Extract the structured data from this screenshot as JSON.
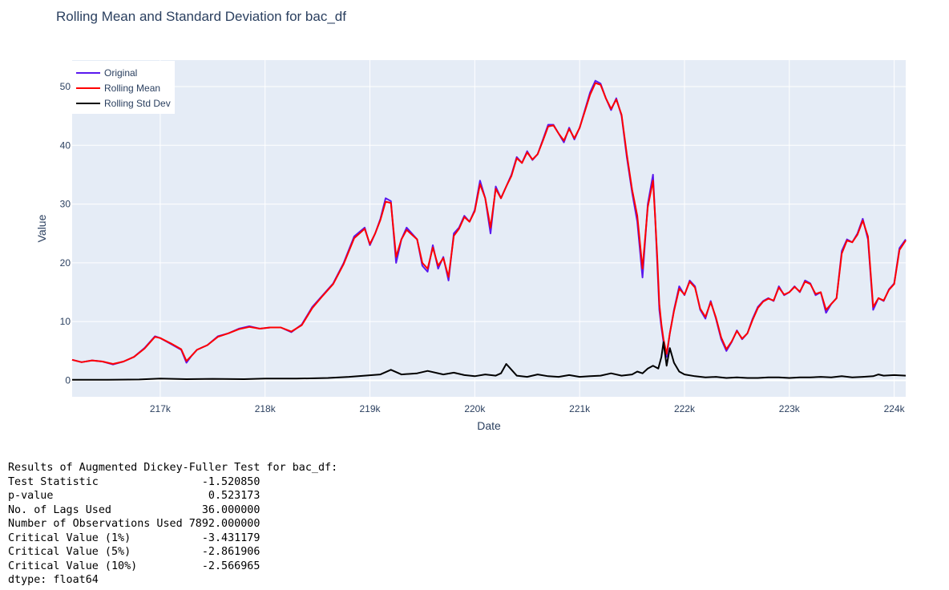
{
  "colors": {
    "plot_bg": "#e5ecf6",
    "grid": "#ffffff",
    "original": "#5a18ee",
    "rolling_mean": "#ff0000",
    "rolling_std": "#000000"
  },
  "chart_data": {
    "type": "line",
    "title": "Rolling Mean and Standard Deviation for bac_df",
    "xlabel": "Date",
    "ylabel": "Value",
    "xlim": [
      216160,
      224110
    ],
    "ylim": [
      -2.8,
      54.5
    ],
    "x_ticks": [
      217000,
      218000,
      219000,
      220000,
      221000,
      222000,
      223000,
      224000
    ],
    "x_tick_labels": [
      "217k",
      "218k",
      "219k",
      "220k",
      "221k",
      "222k",
      "223k",
      "224k"
    ],
    "y_ticks": [
      0,
      10,
      20,
      30,
      40,
      50
    ],
    "y_tick_labels": [
      "0",
      "10",
      "20",
      "30",
      "40",
      "50"
    ],
    "grid": true,
    "legend": "top-left",
    "series": [
      {
        "name": "Original",
        "x": [
          216160,
          216250,
          216350,
          216450,
          216550,
          216650,
          216750,
          216850,
          216950,
          217000,
          217100,
          217200,
          217250,
          217300,
          217350,
          217450,
          217550,
          217650,
          217750,
          217850,
          217950,
          218050,
          218150,
          218250,
          218350,
          218450,
          218550,
          218650,
          218750,
          218850,
          218950,
          219000,
          219050,
          219100,
          219150,
          219200,
          219250,
          219300,
          219350,
          219450,
          219500,
          219550,
          219600,
          219650,
          219700,
          219750,
          219800,
          219850,
          219900,
          219950,
          220000,
          220050,
          220100,
          220150,
          220200,
          220250,
          220300,
          220350,
          220400,
          220450,
          220500,
          220550,
          220600,
          220650,
          220700,
          220750,
          220800,
          220850,
          220900,
          220950,
          221000,
          221050,
          221100,
          221150,
          221200,
          221250,
          221300,
          221350,
          221400,
          221450,
          221500,
          221550,
          221600,
          221650,
          221700,
          221720,
          221740,
          221760,
          221780,
          221800,
          221830,
          221860,
          221900,
          221950,
          222000,
          222050,
          222100,
          222150,
          222200,
          222250,
          222300,
          222350,
          222400,
          222450,
          222500,
          222550,
          222600,
          222650,
          222700,
          222750,
          222800,
          222850,
          222900,
          222950,
          223000,
          223050,
          223100,
          223150,
          223200,
          223250,
          223300,
          223350,
          223400,
          223450,
          223500,
          223550,
          223600,
          223650,
          223700,
          223750,
          223800,
          223850,
          223900,
          223950,
          224000,
          224050,
          224110
        ],
        "values": [
          3.5,
          3.1,
          3.4,
          3.2,
          2.7,
          3.2,
          4.0,
          5.5,
          7.5,
          7.2,
          6.2,
          5.2,
          3.0,
          4.2,
          5.2,
          6.0,
          7.5,
          8.0,
          8.8,
          9.2,
          8.8,
          9.0,
          9.0,
          8.2,
          9.5,
          12.5,
          14.5,
          16.5,
          20.0,
          24.5,
          26.0,
          23.0,
          25.0,
          27.5,
          31.0,
          30.5,
          20.0,
          24.0,
          26.0,
          24.0,
          19.5,
          18.5,
          23.0,
          19.0,
          21.0,
          17.0,
          25.0,
          26.0,
          28.0,
          27.0,
          29.0,
          34.0,
          31.0,
          25.0,
          33.0,
          31.0,
          33.0,
          35.0,
          38.0,
          37.0,
          39.0,
          37.5,
          38.5,
          41.0,
          43.5,
          43.5,
          42.0,
          40.5,
          43.0,
          41.0,
          43.0,
          46.0,
          49.0,
          51.0,
          50.5,
          48.0,
          46.0,
          48.0,
          45.0,
          38.0,
          32.0,
          27.0,
          17.5,
          30.0,
          35.0,
          28.0,
          20.0,
          12.0,
          9.0,
          6.5,
          4.0,
          8.0,
          12.0,
          16.0,
          14.5,
          17.0,
          16.0,
          12.0,
          10.5,
          13.5,
          10.5,
          7.0,
          5.0,
          6.5,
          8.5,
          7.0,
          8.0,
          10.5,
          12.5,
          13.5,
          14.0,
          13.5,
          16.0,
          14.5,
          15.0,
          16.0,
          15.0,
          17.0,
          16.5,
          14.5,
          15.0,
          11.5,
          13.0,
          14.0,
          22.0,
          24.0,
          23.5,
          25.0,
          27.5,
          24.0,
          12.0,
          14.0,
          13.5,
          15.5,
          16.5,
          22.5,
          24.0
        ]
      },
      {
        "name": "Rolling Mean",
        "x": [
          216160,
          216250,
          216350,
          216450,
          216550,
          216650,
          216750,
          216850,
          216950,
          217000,
          217100,
          217200,
          217250,
          217300,
          217350,
          217450,
          217550,
          217650,
          217750,
          217850,
          217950,
          218050,
          218150,
          218250,
          218350,
          218450,
          218550,
          218650,
          218750,
          218850,
          218950,
          219000,
          219050,
          219100,
          219150,
          219200,
          219250,
          219300,
          219350,
          219450,
          219500,
          219550,
          219600,
          219650,
          219700,
          219750,
          219800,
          219850,
          219900,
          219950,
          220000,
          220050,
          220100,
          220150,
          220200,
          220250,
          220300,
          220350,
          220400,
          220450,
          220500,
          220550,
          220600,
          220650,
          220700,
          220750,
          220800,
          220850,
          220900,
          220950,
          221000,
          221050,
          221100,
          221150,
          221200,
          221250,
          221300,
          221350,
          221400,
          221450,
          221500,
          221550,
          221600,
          221650,
          221700,
          221720,
          221740,
          221760,
          221780,
          221800,
          221830,
          221860,
          221900,
          221950,
          222000,
          222050,
          222100,
          222150,
          222200,
          222250,
          222300,
          222350,
          222400,
          222450,
          222500,
          222550,
          222600,
          222650,
          222700,
          222750,
          222800,
          222850,
          222900,
          222950,
          223000,
          223050,
          223100,
          223150,
          223200,
          223250,
          223300,
          223350,
          223400,
          223450,
          223500,
          223550,
          223600,
          223650,
          223700,
          223750,
          223800,
          223850,
          223900,
          223950,
          224000,
          224050,
          224110
        ],
        "values": [
          3.5,
          3.1,
          3.4,
          3.2,
          2.8,
          3.2,
          4.0,
          5.4,
          7.4,
          7.2,
          6.3,
          5.3,
          3.3,
          4.2,
          5.2,
          6.0,
          7.4,
          8.0,
          8.7,
          9.1,
          8.8,
          9.0,
          9.0,
          8.3,
          9.4,
          12.3,
          14.4,
          16.4,
          19.8,
          24.2,
          25.8,
          23.2,
          25.0,
          27.3,
          30.4,
          30.2,
          21.0,
          24.0,
          25.6,
          24.0,
          20.0,
          19.0,
          22.6,
          19.5,
          20.8,
          17.6,
          24.6,
          25.8,
          27.8,
          27.0,
          28.8,
          33.4,
          31.0,
          26.0,
          32.6,
          31.0,
          33.0,
          34.8,
          37.8,
          37.0,
          38.8,
          37.6,
          38.5,
          40.8,
          43.2,
          43.4,
          42.0,
          40.8,
          42.8,
          41.2,
          43.0,
          45.8,
          48.6,
          50.6,
          50.3,
          48.0,
          46.2,
          47.8,
          45.2,
          38.5,
          32.5,
          28.0,
          19.0,
          29.5,
          34.0,
          28.0,
          21.0,
          13.0,
          9.5,
          7.0,
          4.5,
          8.0,
          11.8,
          15.6,
          14.6,
          16.8,
          15.8,
          12.2,
          10.8,
          13.3,
          10.7,
          7.3,
          5.3,
          6.6,
          8.4,
          7.1,
          8.0,
          10.3,
          12.3,
          13.4,
          13.9,
          13.6,
          15.8,
          14.6,
          15.0,
          15.9,
          15.1,
          16.8,
          16.4,
          14.7,
          15.0,
          12.0,
          13.0,
          14.0,
          21.6,
          23.8,
          23.5,
          24.8,
          27.2,
          24.5,
          12.5,
          14.0,
          13.6,
          15.4,
          16.4,
          22.2,
          23.8
        ]
      },
      {
        "name": "Rolling Std Dev",
        "x": [
          216160,
          216500,
          216800,
          217000,
          217250,
          217500,
          217800,
          218000,
          218300,
          218600,
          218800,
          218950,
          219100,
          219200,
          219300,
          219450,
          219550,
          219700,
          219800,
          219900,
          220000,
          220100,
          220200,
          220250,
          220300,
          220400,
          220500,
          220600,
          220700,
          220800,
          220900,
          221000,
          221100,
          221200,
          221300,
          221400,
          221500,
          221550,
          221600,
          221650,
          221700,
          221750,
          221780,
          221800,
          221830,
          221860,
          221900,
          221950,
          222000,
          222100,
          222200,
          222300,
          222400,
          222500,
          222600,
          222700,
          222800,
          222900,
          223000,
          223100,
          223200,
          223300,
          223400,
          223500,
          223600,
          223700,
          223800,
          223850,
          223900,
          224000,
          224110
        ],
        "values": [
          0.1,
          0.1,
          0.15,
          0.3,
          0.2,
          0.25,
          0.2,
          0.3,
          0.3,
          0.4,
          0.6,
          0.8,
          1.0,
          1.8,
          1.0,
          1.2,
          1.6,
          1.0,
          1.3,
          0.9,
          0.7,
          1.0,
          0.8,
          1.2,
          2.8,
          0.8,
          0.6,
          1.0,
          0.7,
          0.6,
          0.9,
          0.6,
          0.7,
          0.8,
          1.2,
          0.8,
          1.0,
          1.5,
          1.2,
          2.0,
          2.5,
          2.0,
          4.0,
          6.5,
          2.5,
          5.5,
          3.0,
          1.5,
          1.0,
          0.7,
          0.5,
          0.6,
          0.4,
          0.5,
          0.4,
          0.4,
          0.5,
          0.5,
          0.4,
          0.5,
          0.5,
          0.6,
          0.5,
          0.7,
          0.5,
          0.6,
          0.7,
          1.0,
          0.8,
          0.9,
          0.8
        ]
      }
    ]
  },
  "adf": {
    "heading": "Results of Augmented Dickey-Fuller Test for bac_df:",
    "rows": [
      {
        "label": "Test Statistic",
        "value": "-1.520850"
      },
      {
        "label": "p-value",
        "value": "0.523173"
      },
      {
        "label": "No. of Lags Used",
        "value": "36.000000"
      },
      {
        "label": "Number of Observations Used",
        "value": "7892.000000"
      },
      {
        "label": "Critical Value (1%)",
        "value": "-3.431179"
      },
      {
        "label": "Critical Value (5%)",
        "value": "-2.861906"
      },
      {
        "label": "Critical Value (10%)",
        "value": "-2.566965"
      }
    ],
    "dtype": "dtype: float64"
  }
}
